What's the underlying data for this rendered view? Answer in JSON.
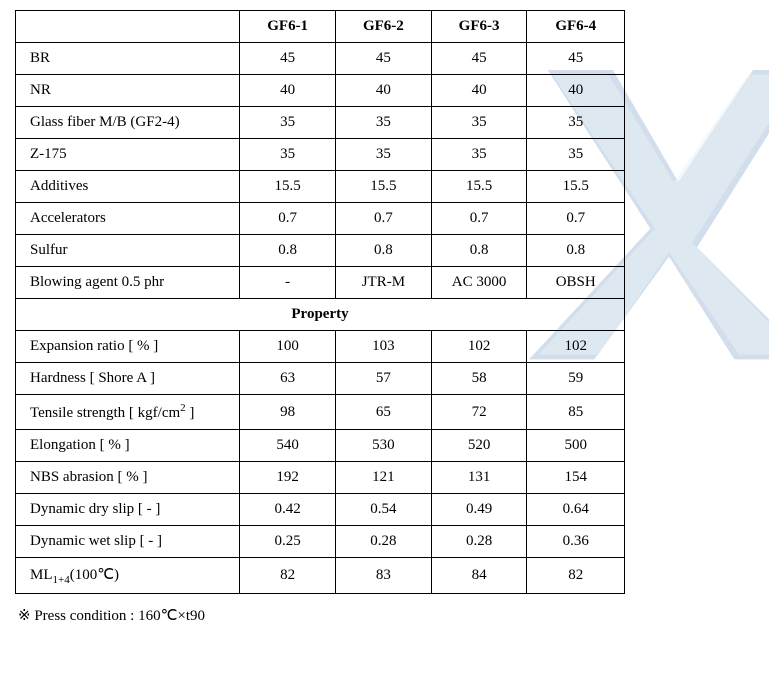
{
  "headers": {
    "empty": "",
    "c1": "GF6-1",
    "c2": "GF6-2",
    "c3": "GF6-3",
    "c4": "GF6-4"
  },
  "formulation": [
    {
      "label": "BR",
      "c1": "45",
      "c2": "45",
      "c3": "45",
      "c4": "45"
    },
    {
      "label": "NR",
      "c1": "40",
      "c2": "40",
      "c3": "40",
      "c4": "40"
    },
    {
      "label": "Glass fiber M/B (GF2-4)",
      "c1": "35",
      "c2": "35",
      "c3": "35",
      "c4": "35"
    },
    {
      "label": "Z-175",
      "c1": "35",
      "c2": "35",
      "c3": "35",
      "c4": "35"
    },
    {
      "label": "Additives",
      "c1": "15.5",
      "c2": "15.5",
      "c3": "15.5",
      "c4": "15.5"
    },
    {
      "label": "Accelerators",
      "c1": "0.7",
      "c2": "0.7",
      "c3": "0.7",
      "c4": "0.7"
    },
    {
      "label": "Sulfur",
      "c1": "0.8",
      "c2": "0.8",
      "c3": "0.8",
      "c4": "0.8"
    },
    {
      "label": "Blowing agent 0.5 phr",
      "c1": "-",
      "c2": "JTR-M",
      "c3": "AC 3000",
      "c4": "OBSH"
    }
  ],
  "property_label": "Property",
  "properties": [
    {
      "label": "Expansion ratio [ % ]",
      "c1": "100",
      "c2": "103",
      "c3": "102",
      "c4": "102"
    },
    {
      "label": "Hardness [ Shore A ]",
      "c1": "63",
      "c2": "57",
      "c3": "58",
      "c4": "59"
    },
    {
      "label_html": "Tensile strength [ kgf/cm<sup>2</sup> ]",
      "c1": "98",
      "c2": "65",
      "c3": "72",
      "c4": "85"
    },
    {
      "label": "Elongation [ % ]",
      "c1": "540",
      "c2": "530",
      "c3": "520",
      "c4": "500"
    },
    {
      "label": "NBS abrasion [ % ]",
      "c1": "192",
      "c2": "121",
      "c3": "131",
      "c4": "154"
    },
    {
      "label": "Dynamic dry slip [ - ]",
      "c1": "0.42",
      "c2": "0.54",
      "c3": "0.49",
      "c4": "0.64"
    },
    {
      "label": "Dynamic wet slip [ - ]",
      "c1": "0.25",
      "c2": "0.28",
      "c3": "0.28",
      "c4": "0.36"
    },
    {
      "label_html": "ML<sub>1+4</sub>(100℃)",
      "c1": "82",
      "c2": "83",
      "c3": "84",
      "c4": "82"
    }
  ],
  "footnote": "※ Press condition : 160℃×t90",
  "watermark_color_dark": "#3b6fa8",
  "watermark_color_light": "#a8c5de"
}
